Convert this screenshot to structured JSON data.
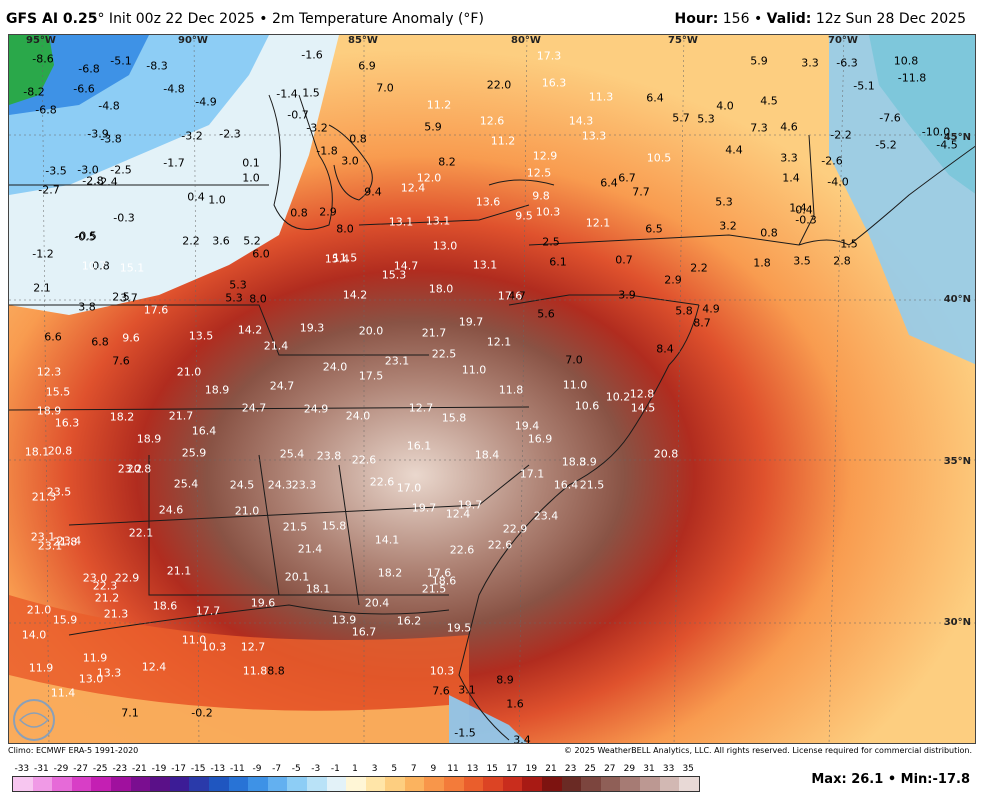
{
  "header": {
    "model": "GFS AI 0.25",
    "init": "° Init 00z 22 Dec 2025 • 2m Temperature Anomaly (°F)",
    "hour_label": "Hour:",
    "hour_value": "156",
    "valid_label": "Valid:",
    "valid_value": "12z Sun 28 Dec 2025"
  },
  "map": {
    "longitude_labels": [
      "95°W",
      "90°W",
      "85°W",
      "80°W",
      "75°W",
      "70°W"
    ],
    "latitude_labels": [
      "45°N",
      "40°N",
      "35°N",
      "30°N"
    ],
    "values": [
      {
        "v": "-8.6",
        "lt": false
      },
      {
        "v": "-5.1",
        "lt": false
      },
      {
        "v": "-8.3",
        "lt": false
      },
      {
        "v": "-6.8",
        "lt": false
      },
      {
        "v": "-1.6",
        "lt": false
      },
      {
        "v": "6.9",
        "lt": false
      },
      {
        "v": "17.3",
        "lt": true
      },
      {
        "v": "5.9",
        "lt": false
      },
      {
        "v": "3.3",
        "lt": false
      },
      {
        "v": "-6.3",
        "lt": false
      },
      {
        "v": "10.8",
        "lt": false
      },
      {
        "v": "-8.2",
        "lt": false
      },
      {
        "v": "-6.6",
        "lt": false
      },
      {
        "v": "-4.8",
        "lt": false
      },
      {
        "v": "-1.4",
        "lt": false
      },
      {
        "v": "1.5",
        "lt": false
      },
      {
        "v": "7.0",
        "lt": false
      },
      {
        "v": "22.0",
        "lt": false
      },
      {
        "v": "16.3",
        "lt": true
      },
      {
        "v": "-11.8",
        "lt": false
      },
      {
        "v": "-5.1",
        "lt": false
      },
      {
        "v": "-6.8",
        "lt": false
      },
      {
        "v": "-4.8",
        "lt": false
      },
      {
        "v": "-4.9",
        "lt": false
      },
      {
        "v": "-0.7",
        "lt": false
      },
      {
        "v": "11.2",
        "lt": true
      },
      {
        "v": "11.3",
        "lt": true
      },
      {
        "v": "6.4",
        "lt": false
      },
      {
        "v": "4.0",
        "lt": false
      },
      {
        "v": "4.5",
        "lt": false
      },
      {
        "v": "-3.9",
        "lt": false
      },
      {
        "v": "-3.8",
        "lt": false
      },
      {
        "v": "-3.2",
        "lt": false
      },
      {
        "v": "-2.3",
        "lt": false
      },
      {
        "v": "-3.2",
        "lt": false
      },
      {
        "v": "0.8",
        "lt": false
      },
      {
        "v": "5.9",
        "lt": false
      },
      {
        "v": "12.6",
        "lt": true
      },
      {
        "v": "14.3",
        "lt": true
      },
      {
        "v": "5.7",
        "lt": false
      },
      {
        "v": "5.3",
        "lt": false
      },
      {
        "v": "7.3",
        "lt": false
      },
      {
        "v": "4.6",
        "lt": false
      },
      {
        "v": "-7.6",
        "lt": false
      },
      {
        "v": "-10.0",
        "lt": false
      },
      {
        "v": "-1.8",
        "lt": false
      },
      {
        "v": "11.2",
        "lt": true
      },
      {
        "v": "13.3",
        "lt": true
      },
      {
        "v": "-2.2",
        "lt": false
      },
      {
        "v": "-5.2",
        "lt": false
      },
      {
        "v": "-4.5",
        "lt": false
      },
      {
        "v": "-3.5",
        "lt": false
      },
      {
        "v": "-3.0",
        "lt": false
      },
      {
        "v": "-2.5",
        "lt": false
      },
      {
        "v": "-1.7",
        "lt": false
      },
      {
        "v": "0.1",
        "lt": false
      },
      {
        "v": "3.0",
        "lt": false
      },
      {
        "v": "8.2",
        "lt": false
      },
      {
        "v": "12.9",
        "lt": true
      },
      {
        "v": "10.5",
        "lt": true
      },
      {
        "v": "4.4",
        "lt": false
      },
      {
        "v": "3.3",
        "lt": false
      },
      {
        "v": "-2.6",
        "lt": false
      },
      {
        "v": "-2.8",
        "lt": false
      },
      {
        "v": "-2.4",
        "lt": false
      },
      {
        "v": "1.0",
        "lt": false
      },
      {
        "v": "12.0",
        "lt": true
      },
      {
        "v": "12.5",
        "lt": true
      },
      {
        "v": "6.4",
        "lt": false
      },
      {
        "v": "6.7",
        "lt": false
      },
      {
        "v": "1.4",
        "lt": false
      },
      {
        "v": "-4.0",
        "lt": false
      },
      {
        "v": "-2.7",
        "lt": false
      },
      {
        "v": "0.4",
        "lt": false
      },
      {
        "v": "1.0",
        "lt": false
      },
      {
        "v": "9.4",
        "lt": false
      },
      {
        "v": "12.4",
        "lt": true
      },
      {
        "v": "13.6",
        "lt": true
      },
      {
        "v": "9.8",
        "lt": true
      },
      {
        "v": "7.7",
        "lt": false
      },
      {
        "v": "5.3",
        "lt": false
      },
      {
        "v": "-0.3",
        "lt": false
      },
      {
        "v": "0.8",
        "lt": false
      },
      {
        "v": "2.9",
        "lt": false
      },
      {
        "v": "13.1",
        "lt": true
      },
      {
        "v": "9.5",
        "lt": true
      },
      {
        "v": "10.3",
        "lt": true
      },
      {
        "v": "12.1",
        "lt": true
      },
      {
        "v": "1.4",
        "lt": false
      },
      {
        "v": "0.4",
        "lt": false
      },
      {
        "v": "-0.3",
        "lt": false
      },
      {
        "v": "-0.5",
        "lt": false
      },
      {
        "v": "2.2",
        "lt": false
      },
      {
        "v": "3.6",
        "lt": false
      },
      {
        "v": "5.2",
        "lt": false
      },
      {
        "v": "8.0",
        "lt": false
      },
      {
        "v": "13.1",
        "lt": true
      },
      {
        "v": "6.5",
        "lt": false
      },
      {
        "v": "3.2",
        "lt": false
      },
      {
        "v": "0.8",
        "lt": false
      },
      {
        "v": "-1.2",
        "lt": false
      },
      {
        "v": "-0.5",
        "lt": false
      },
      {
        "v": "0.8",
        "lt": false
      },
      {
        "v": "6.0",
        "lt": false
      },
      {
        "v": "11.5",
        "lt": true
      },
      {
        "v": "13.0",
        "lt": true
      },
      {
        "v": "2.5",
        "lt": false
      },
      {
        "v": "0.7",
        "lt": false
      },
      {
        "v": "1.5",
        "lt": false
      },
      {
        "v": "10.7",
        "lt": true
      },
      {
        "v": "15.1",
        "lt": true
      },
      {
        "v": "15.4",
        "lt": true
      },
      {
        "v": "14.7",
        "lt": true
      },
      {
        "v": "13.1",
        "lt": true
      },
      {
        "v": "6.1",
        "lt": false
      },
      {
        "v": "2.2",
        "lt": false
      },
      {
        "v": "1.8",
        "lt": false
      },
      {
        "v": "3.5",
        "lt": false
      },
      {
        "v": "2.8",
        "lt": false
      },
      {
        "v": "2.1",
        "lt": false
      },
      {
        "v": "2.5",
        "lt": false
      },
      {
        "v": "5.3",
        "lt": false
      },
      {
        "v": "5.3",
        "lt": false
      },
      {
        "v": "8.0",
        "lt": false
      },
      {
        "v": "15.3",
        "lt": true
      },
      {
        "v": "14.2",
        "lt": true
      },
      {
        "v": "18.0",
        "lt": true
      },
      {
        "v": "2.9",
        "lt": false
      },
      {
        "v": "3.8",
        "lt": false
      },
      {
        "v": "3.7",
        "lt": false
      },
      {
        "v": "17.6",
        "lt": true
      },
      {
        "v": "17.6",
        "lt": true
      },
      {
        "v": "4.7",
        "lt": false
      },
      {
        "v": "3.9",
        "lt": false
      },
      {
        "v": "5.8",
        "lt": false
      },
      {
        "v": "4.9",
        "lt": false
      },
      {
        "v": "6.6",
        "lt": false
      },
      {
        "v": "6.8",
        "lt": false
      },
      {
        "v": "9.6",
        "lt": true
      },
      {
        "v": "14.2",
        "lt": true
      },
      {
        "v": "19.3",
        "lt": true
      },
      {
        "v": "20.0",
        "lt": true
      },
      {
        "v": "19.7",
        "lt": true
      },
      {
        "v": "5.6",
        "lt": false
      },
      {
        "v": "8.7",
        "lt": false
      },
      {
        "v": "7.6",
        "lt": false
      },
      {
        "v": "13.5",
        "lt": true
      },
      {
        "v": "21.4",
        "lt": true
      },
      {
        "v": "21.7",
        "lt": true
      },
      {
        "v": "12.1",
        "lt": true
      },
      {
        "v": "7.0",
        "lt": false
      },
      {
        "v": "8.4",
        "lt": false
      },
      {
        "v": "12.3",
        "lt": true
      },
      {
        "v": "21.0",
        "lt": true
      },
      {
        "v": "24.0",
        "lt": true
      },
      {
        "v": "23.1",
        "lt": true
      },
      {
        "v": "22.5",
        "lt": true
      },
      {
        "v": "11.0",
        "lt": true
      },
      {
        "v": "15.5",
        "lt": true
      },
      {
        "v": "18.9",
        "lt": true
      },
      {
        "v": "24.7",
        "lt": true
      },
      {
        "v": "17.5",
        "lt": true
      },
      {
        "v": "11.8",
        "lt": true
      },
      {
        "v": "11.0",
        "lt": true
      },
      {
        "v": "10.2",
        "lt": true
      },
      {
        "v": "12.8",
        "lt": true
      },
      {
        "v": "18.9",
        "lt": true
      },
      {
        "v": "24.7",
        "lt": true
      },
      {
        "v": "24.9",
        "lt": true
      },
      {
        "v": "24.0",
        "lt": true
      },
      {
        "v": "12.7",
        "lt": true
      },
      {
        "v": "10.6",
        "lt": true
      },
      {
        "v": "14.5",
        "lt": true
      },
      {
        "v": "16.3",
        "lt": true
      },
      {
        "v": "18.2",
        "lt": true
      },
      {
        "v": "21.7",
        "lt": true
      },
      {
        "v": "15.8",
        "lt": true
      },
      {
        "v": "19.4",
        "lt": true
      },
      {
        "v": "18.9",
        "lt": true
      },
      {
        "v": "16.4",
        "lt": true
      },
      {
        "v": "16.9",
        "lt": true
      },
      {
        "v": "18.1",
        "lt": true
      },
      {
        "v": "20.8",
        "lt": true
      },
      {
        "v": "20.8",
        "lt": true
      },
      {
        "v": "25.9",
        "lt": true
      },
      {
        "v": "25.4",
        "lt": true
      },
      {
        "v": "23.8",
        "lt": true
      },
      {
        "v": "22.6",
        "lt": true
      },
      {
        "v": "16.1",
        "lt": true
      },
      {
        "v": "18.4",
        "lt": true
      },
      {
        "v": "18.3",
        "lt": true
      },
      {
        "v": "8.9",
        "lt": true
      },
      {
        "v": "20.8",
        "lt": true
      },
      {
        "v": "23.2",
        "lt": true
      },
      {
        "v": "25.4",
        "lt": true
      },
      {
        "v": "24.5",
        "lt": true
      },
      {
        "v": "24.3",
        "lt": true
      },
      {
        "v": "23.3",
        "lt": true
      },
      {
        "v": "22.6",
        "lt": true
      },
      {
        "v": "17.0",
        "lt": true
      },
      {
        "v": "17.1",
        "lt": true
      },
      {
        "v": "16.4",
        "lt": true
      },
      {
        "v": "21.5",
        "lt": true
      },
      {
        "v": "21.3",
        "lt": true
      },
      {
        "v": "23.5",
        "lt": true
      },
      {
        "v": "24.6",
        "lt": true
      },
      {
        "v": "21.0",
        "lt": true
      },
      {
        "v": "19.7",
        "lt": true
      },
      {
        "v": "19.7",
        "lt": true
      },
      {
        "v": "12.4",
        "lt": true
      },
      {
        "v": "23.4",
        "lt": true
      },
      {
        "v": "23.1",
        "lt": true
      },
      {
        "v": "23.4",
        "lt": true
      },
      {
        "v": "22.1",
        "lt": true
      },
      {
        "v": "21.5",
        "lt": true
      },
      {
        "v": "15.8",
        "lt": true
      },
      {
        "v": "22.9",
        "lt": true
      },
      {
        "v": "23.1",
        "lt": true
      },
      {
        "v": "21.8",
        "lt": true
      },
      {
        "v": "21.4",
        "lt": true
      },
      {
        "v": "14.1",
        "lt": true
      },
      {
        "v": "22.6",
        "lt": true
      },
      {
        "v": "23.0",
        "lt": true
      },
      {
        "v": "22.9",
        "lt": true
      },
      {
        "v": "21.1",
        "lt": true
      },
      {
        "v": "20.1",
        "lt": true
      },
      {
        "v": "18.2",
        "lt": true
      },
      {
        "v": "17.6",
        "lt": true
      },
      {
        "v": "22.6",
        "lt": true
      },
      {
        "v": "22.3",
        "lt": true
      },
      {
        "v": "21.2",
        "lt": true
      },
      {
        "v": "18.1",
        "lt": true
      },
      {
        "v": "18.6",
        "lt": true
      },
      {
        "v": "21.5",
        "lt": true
      },
      {
        "v": "21.0",
        "lt": true
      },
      {
        "v": "21.3",
        "lt": true
      },
      {
        "v": "18.6",
        "lt": true
      },
      {
        "v": "17.7",
        "lt": true
      },
      {
        "v": "19.6",
        "lt": true
      },
      {
        "v": "20.4",
        "lt": true
      },
      {
        "v": "15.9",
        "lt": true
      },
      {
        "v": "13.9",
        "lt": true
      },
      {
        "v": "16.7",
        "lt": true
      },
      {
        "v": "16.2",
        "lt": true
      },
      {
        "v": "19.5",
        "lt": true
      },
      {
        "v": "14.0",
        "lt": true
      },
      {
        "v": "11.0",
        "lt": true
      },
      {
        "v": "10.3",
        "lt": true
      },
      {
        "v": "12.7",
        "lt": true
      },
      {
        "v": "11.9",
        "lt": true
      },
      {
        "v": "13.3",
        "lt": true
      },
      {
        "v": "12.4",
        "lt": true
      },
      {
        "v": "11.9",
        "lt": true
      },
      {
        "v": "13.0",
        "lt": true
      },
      {
        "v": "8.8",
        "lt": false
      },
      {
        "v": "11.8",
        "lt": true
      },
      {
        "v": "10.3",
        "lt": true
      },
      {
        "v": "11.4",
        "lt": true
      },
      {
        "v": "7.6",
        "lt": false
      },
      {
        "v": "3.1",
        "lt": false
      },
      {
        "v": "8.9",
        "lt": false
      },
      {
        "v": "7.1",
        "lt": false
      },
      {
        "v": "-0.2",
        "lt": false
      },
      {
        "v": "1.6",
        "lt": false
      },
      {
        "v": "-1.5",
        "lt": false
      },
      {
        "v": "3.4",
        "lt": false
      }
    ]
  },
  "footer": {
    "climo": "Climo: ECMWF ERA-5 1991-2020",
    "copyright": "© 2025 WeatherBELL Analytics, LLC. All rights reserved. License required for commercial distribution.",
    "logo_text": "WEATHERBELL",
    "max_label": "Max:",
    "max_value": "26.1",
    "sep": "•",
    "min_label": "Min:",
    "min_value": "-17.8"
  },
  "colorbar": {
    "ticks": [
      "-33",
      "-31",
      "-29",
      "-27",
      "-25",
      "-23",
      "-21",
      "-19",
      "-17",
      "-15",
      "-13",
      "-11",
      "-9",
      "-7",
      "-5",
      "-3",
      "-1",
      "1",
      "3",
      "5",
      "7",
      "9",
      "11",
      "13",
      "15",
      "17",
      "19",
      "21",
      "23",
      "25",
      "27",
      "29",
      "31",
      "33",
      "35"
    ],
    "colors": [
      "#f7c6f0",
      "#f09ae6",
      "#e66ad8",
      "#d83ec6",
      "#c41fb3",
      "#a0109e",
      "#7a0e90",
      "#5a1088",
      "#3c1c96",
      "#2a3aaa",
      "#1f56c0",
      "#2873d6",
      "#3e92e6",
      "#63b0f0",
      "#8dcdf5",
      "#b9e2f7",
      "#e3f2f8",
      "#fff6d6",
      "#ffe5a8",
      "#fdce80",
      "#fbb35f",
      "#f8964a",
      "#f37b3a",
      "#ea5e2c",
      "#dc4424",
      "#c92d1d",
      "#a81a14",
      "#7d1310",
      "#6a2a24",
      "#7c453e",
      "#8f5f57",
      "#a67b74",
      "#bc9892",
      "#d2b8b3",
      "#e8d9d6"
    ]
  }
}
